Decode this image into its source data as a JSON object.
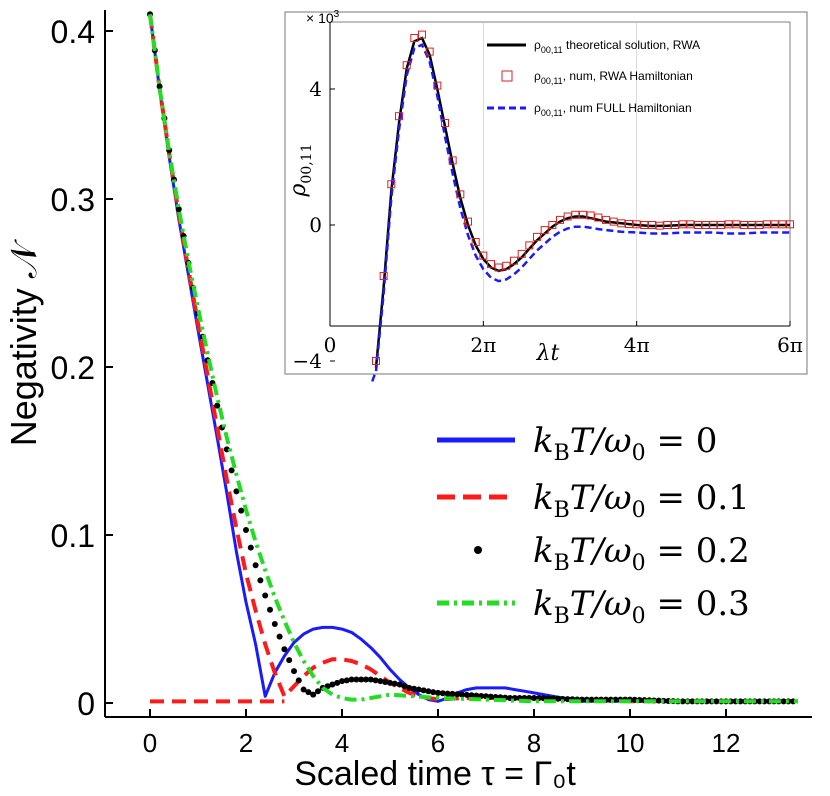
{
  "chart_data": [
    {
      "type": "line",
      "name": "main",
      "xlabel": "Scaled time τ = Γ₀t",
      "ylabel": "Negativity 𝒩",
      "xlim": [
        -0.8,
        13.5
      ],
      "ylim": [
        0,
        0.41
      ],
      "xticks": [
        0,
        2,
        4,
        6,
        8,
        10,
        12
      ],
      "yticks": [
        0,
        0.1,
        0.2,
        0.3,
        0.4
      ],
      "xtick_labels": [
        "0",
        "2",
        "4",
        "6",
        "8",
        "10",
        "12"
      ],
      "ytick_labels": [
        "0",
        "0.1",
        "0.2",
        "0.3",
        "0.4"
      ],
      "legend_position": "center-right",
      "series": [
        {
          "name": "k_B T/ω₀ = 0",
          "label_lhs": "k",
          "label_sub": "B",
          "label_rhs": "T/ω",
          "label_sub2": "0",
          "label_val": " = 0",
          "color": "#1a1aff",
          "style": "solid",
          "x": [
            0,
            0.2,
            0.4,
            0.6,
            0.8,
            1.0,
            1.2,
            1.4,
            1.6,
            1.8,
            2.0,
            2.2,
            2.4,
            2.6,
            2.8,
            3.0,
            3.2,
            3.4,
            3.6,
            3.8,
            4.0,
            4.2,
            4.4,
            4.6,
            4.8,
            5.0,
            5.2,
            5.4,
            5.6,
            5.8,
            6.0,
            6.2,
            6.4,
            6.6,
            6.8,
            7.0,
            7.2,
            7.4,
            7.6,
            7.8,
            8.0,
            8.2,
            8.4,
            8.6,
            8.8,
            9.0,
            9.5,
            10,
            11,
            12,
            13.5
          ],
          "y": [
            0.41,
            0.365,
            0.325,
            0.288,
            0.255,
            0.222,
            0.19,
            0.158,
            0.125,
            0.09,
            0.06,
            0.035,
            0.004,
            0.018,
            0.028,
            0.036,
            0.041,
            0.044,
            0.045,
            0.045,
            0.044,
            0.042,
            0.038,
            0.033,
            0.027,
            0.02,
            0.014,
            0.009,
            0.005,
            0.002,
            0.001,
            0.003,
            0.006,
            0.008,
            0.009,
            0.009,
            0.009,
            0.009,
            0.008,
            0.007,
            0.006,
            0.005,
            0.004,
            0.003,
            0.002,
            0.001,
            0.001,
            0.001,
            0.001,
            0.001,
            0.001
          ]
        },
        {
          "name": "k_B T/ω₀ = 0.1",
          "label_lhs": "k",
          "label_sub": "B",
          "label_rhs": "T/ω",
          "label_sub2": "0",
          "label_val": " = 0.1",
          "color": "#ff1a1a",
          "style": "dashed",
          "x": [
            -0.2,
            0.0,
            0.2,
            0.4,
            0.6,
            0.8,
            1.0,
            1.2,
            1.4,
            1.6,
            1.8,
            2.0,
            2.2,
            2.4,
            2.6,
            2.8,
            3.0,
            3.2,
            3.4,
            3.6,
            3.8,
            4.0,
            4.2,
            4.4,
            4.6,
            4.8,
            5.0,
            5.2,
            5.4,
            5.6,
            5.8,
            6.0,
            6.5,
            7,
            8,
            9,
            10,
            11,
            12,
            13.5
          ],
          "y": [
            null,
            0.41,
            0.366,
            0.327,
            0.291,
            0.258,
            0.226,
            0.195,
            0.164,
            0.133,
            0.104,
            0.077,
            0.055,
            0.035,
            0.018,
            0.004,
            0.01,
            0.016,
            0.021,
            0.024,
            0.026,
            0.026,
            0.025,
            0.023,
            0.02,
            0.016,
            0.012,
            0.009,
            0.006,
            0.004,
            0.003,
            0.002,
            0.003,
            0.003,
            0.003,
            0.002,
            0.001,
            0.001,
            0.001,
            0.001
          ]
        },
        {
          "name": "k_B T/ω₀ = 0.2",
          "label_lhs": "k",
          "label_sub": "B",
          "label_rhs": "T/ω",
          "label_sub2": "0",
          "label_val": " = 0.2",
          "color": "#000000",
          "style": "dotted",
          "x": [
            0,
            0.2,
            0.4,
            0.6,
            0.8,
            1.0,
            1.2,
            1.4,
            1.6,
            1.8,
            2.0,
            2.2,
            2.4,
            2.6,
            2.8,
            3.0,
            3.2,
            3.4,
            3.6,
            3.8,
            4.0,
            4.2,
            4.4,
            4.6,
            4.8,
            5.0,
            5.2,
            5.4,
            5.6,
            5.8,
            6.0,
            6.5,
            7,
            7.5,
            8,
            9,
            10,
            11,
            12,
            13.5
          ],
          "y": [
            0.41,
            0.367,
            0.329,
            0.294,
            0.262,
            0.232,
            0.204,
            0.177,
            0.151,
            0.126,
            0.103,
            0.082,
            0.064,
            0.047,
            0.032,
            0.019,
            0.008,
            0.005,
            0.009,
            0.011,
            0.013,
            0.014,
            0.014,
            0.014,
            0.013,
            0.012,
            0.011,
            0.009,
            0.008,
            0.007,
            0.006,
            0.005,
            0.004,
            0.003,
            0.003,
            0.002,
            0.002,
            0.001,
            0.001,
            0.001
          ]
        },
        {
          "name": "k_B T/ω₀ = 0.3",
          "label_lhs": "k",
          "label_sub": "B",
          "label_rhs": "T/ω",
          "label_sub2": "0",
          "label_val": " = 0.3",
          "color": "#22dd22",
          "style": "dashdot",
          "x": [
            0,
            0.2,
            0.4,
            0.6,
            0.8,
            1.0,
            1.2,
            1.4,
            1.6,
            1.8,
            2.0,
            2.2,
            2.4,
            2.6,
            2.8,
            3.0,
            3.2,
            3.4,
            3.6,
            3.8,
            4.0,
            4.2,
            4.4,
            4.6,
            4.8,
            5.0,
            5.5,
            6,
            7,
            8,
            9,
            10,
            11,
            12,
            13.5
          ],
          "y": [
            0.41,
            0.366,
            0.328,
            0.294,
            0.263,
            0.235,
            0.208,
            0.182,
            0.158,
            0.136,
            0.115,
            0.096,
            0.079,
            0.063,
            0.049,
            0.036,
            0.025,
            0.016,
            0.009,
            0.005,
            0.003,
            0.002,
            0.002,
            0.003,
            0.004,
            0.005,
            0.004,
            0.003,
            0.002,
            0.001,
            0.001,
            0.001,
            0.001,
            0.001,
            0.001
          ]
        }
      ],
      "zero_dashed_line": {
        "name": "T=0.1 zero baseline",
        "color": "#ff1a1a",
        "x": [
          0.0,
          2.8
        ],
        "y": [
          0.001,
          0.001
        ]
      }
    },
    {
      "type": "line",
      "name": "inset",
      "multiplier": "× 10",
      "multiplier_exp": "3",
      "xlabel": "λt",
      "ylabel_main": "ρ",
      "ylabel_sub": "00,11",
      "xlim": [
        0,
        6
      ],
      "ylim": [
        -4.6,
        5.8
      ],
      "xticks": [
        0,
        2,
        4,
        6
      ],
      "xtick_labels": [
        "0",
        "2π",
        "4π",
        "6π"
      ],
      "yticks": [
        -4,
        0,
        4
      ],
      "ytick_labels": [
        "−4",
        "0",
        "4"
      ],
      "x_units": "multiples of π",
      "legend": [
        {
          "prefix": "ρ",
          "sub": "00,11",
          "text": " theoretical solution, RWA",
          "style": "solid-black"
        },
        {
          "prefix": "ρ",
          "sub": "00,11",
          "text": ", num, RWA Hamiltonian",
          "style": "square-red"
        },
        {
          "prefix": "ρ",
          "sub": "00,11",
          "text": ", num FULL Hamiltonian",
          "style": "dashed-blue"
        }
      ],
      "series": [
        {
          "name": "theoretical solution, RWA",
          "color": "#000000",
          "x": [
            0.6,
            0.7,
            0.8,
            0.9,
            1.0,
            1.1,
            1.2,
            1.3,
            1.4,
            1.5,
            1.6,
            1.7,
            1.8,
            1.9,
            2.0,
            2.1,
            2.2,
            2.3,
            2.4,
            2.5,
            2.6,
            2.7,
            2.8,
            2.9,
            3.0,
            3.1,
            3.2,
            3.3,
            3.4,
            3.5,
            3.6,
            3.8,
            4.0,
            4.2,
            4.4,
            4.6,
            4.8,
            5.0,
            5.2,
            5.4,
            5.6,
            5.8,
            6.0
          ],
          "y": [
            -4.2,
            -1.8,
            1.0,
            3.0,
            4.6,
            5.4,
            5.5,
            5.0,
            4.0,
            2.9,
            1.8,
            0.8,
            0.0,
            -0.6,
            -1.0,
            -1.25,
            -1.35,
            -1.3,
            -1.15,
            -0.95,
            -0.7,
            -0.45,
            -0.25,
            -0.05,
            0.1,
            0.2,
            0.25,
            0.25,
            0.2,
            0.15,
            0.1,
            0.05,
            0.0,
            -0.03,
            -0.02,
            0.0,
            0.0,
            0.0,
            0.0,
            0.0,
            0.0,
            0.0,
            0.0
          ]
        },
        {
          "name": "num, RWA Hamiltonian",
          "color": "#dd2222",
          "x": [
            0.6,
            0.7,
            0.8,
            0.9,
            1.0,
            1.1,
            1.2,
            1.3,
            1.4,
            1.5,
            1.6,
            1.7,
            1.8,
            1.9,
            2.0,
            2.1,
            2.2,
            2.3,
            2.4,
            2.5,
            2.6,
            2.7,
            2.8,
            2.9,
            3.0,
            3.1,
            3.2,
            3.3,
            3.4,
            3.5,
            3.6,
            3.7,
            3.8,
            3.9,
            4.0,
            4.1,
            4.2,
            4.3,
            4.4,
            4.5,
            4.6,
            4.7,
            4.8,
            4.9,
            5.0,
            5.1,
            5.2,
            5.3,
            5.4,
            5.5,
            5.6,
            5.7,
            5.8,
            5.9,
            6.0
          ],
          "y": [
            -4.0,
            -1.5,
            1.2,
            3.2,
            4.7,
            5.5,
            5.6,
            5.1,
            4.1,
            3.0,
            1.9,
            0.9,
            0.1,
            -0.5,
            -0.9,
            -1.15,
            -1.25,
            -1.2,
            -1.05,
            -0.85,
            -0.6,
            -0.35,
            -0.15,
            0.0,
            0.15,
            0.25,
            0.3,
            0.3,
            0.28,
            0.22,
            0.15,
            0.1,
            0.05,
            0.03,
            0.02,
            0.0,
            0.0,
            -0.02,
            0.0,
            0.0,
            0.02,
            0.02,
            0.0,
            0.0,
            0.0,
            0.0,
            0.02,
            0.02,
            0.0,
            0.0,
            0.0,
            0.02,
            0.02,
            0.02,
            0.02
          ]
        },
        {
          "name": "num FULL Hamiltonian",
          "color": "#1a1aff",
          "x": [
            0.55,
            0.6,
            0.7,
            0.8,
            0.9,
            1.0,
            1.1,
            1.2,
            1.3,
            1.4,
            1.5,
            1.6,
            1.7,
            1.8,
            1.9,
            2.0,
            2.1,
            2.2,
            2.3,
            2.4,
            2.5,
            2.6,
            2.7,
            2.8,
            2.9,
            3.0,
            3.1,
            3.2,
            3.3,
            3.4,
            3.5,
            3.6,
            3.8,
            4.0,
            4.2,
            4.4,
            4.6,
            4.8,
            5.0,
            5.2,
            5.4,
            5.6,
            5.8,
            6.0
          ],
          "y": [
            -4.6,
            -4.3,
            -2.0,
            0.8,
            2.8,
            4.4,
            5.2,
            5.3,
            4.8,
            3.8,
            2.6,
            1.5,
            0.5,
            -0.3,
            -0.9,
            -1.3,
            -1.55,
            -1.65,
            -1.6,
            -1.45,
            -1.25,
            -1.0,
            -0.75,
            -0.55,
            -0.35,
            -0.2,
            -0.1,
            -0.05,
            -0.05,
            -0.08,
            -0.12,
            -0.15,
            -0.2,
            -0.22,
            -0.25,
            -0.25,
            -0.22,
            -0.22,
            -0.22,
            -0.25,
            -0.25,
            -0.22,
            -0.22,
            -0.22
          ]
        }
      ]
    }
  ]
}
